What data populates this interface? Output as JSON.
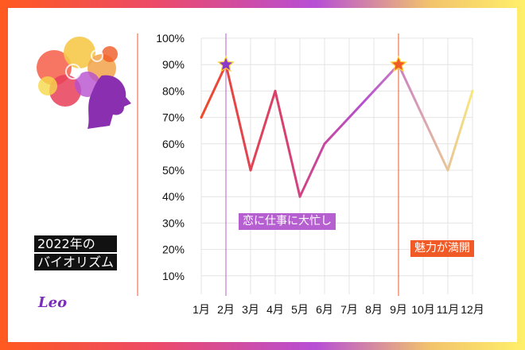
{
  "title_lines": [
    "2022年の",
    "バイオリズム"
  ],
  "sign_label": "Leo",
  "annotations": [
    {
      "month": 2,
      "text": "恋に仕事に大忙し",
      "color": "#b55fd0"
    },
    {
      "month": 9,
      "text": "魅力が満開",
      "color": "#f05a26"
    }
  ],
  "colors": {
    "start": "#ee4a2a",
    "mid": "#b64fd0",
    "end": "#f7e77c",
    "frame_start": "#ff5a1f",
    "frame_end": "#fff06a"
  },
  "chart_data": {
    "type": "line",
    "categories": [
      "1月",
      "2月",
      "3月",
      "4月",
      "5月",
      "6月",
      "7月",
      "8月",
      "9月",
      "10月",
      "11月",
      "12月"
    ],
    "series": [
      {
        "values": [
          70,
          90,
          50,
          80,
          40,
          60,
          70,
          80,
          90,
          70,
          50,
          80
        ]
      }
    ],
    "y_ticks": [
      "10%",
      "20%",
      "30%",
      "40%",
      "50%",
      "60%",
      "70%",
      "80%",
      "90%",
      "100%"
    ],
    "ylim": [
      0,
      100
    ],
    "grid": true,
    "star_markers": [
      2,
      9
    ]
  }
}
